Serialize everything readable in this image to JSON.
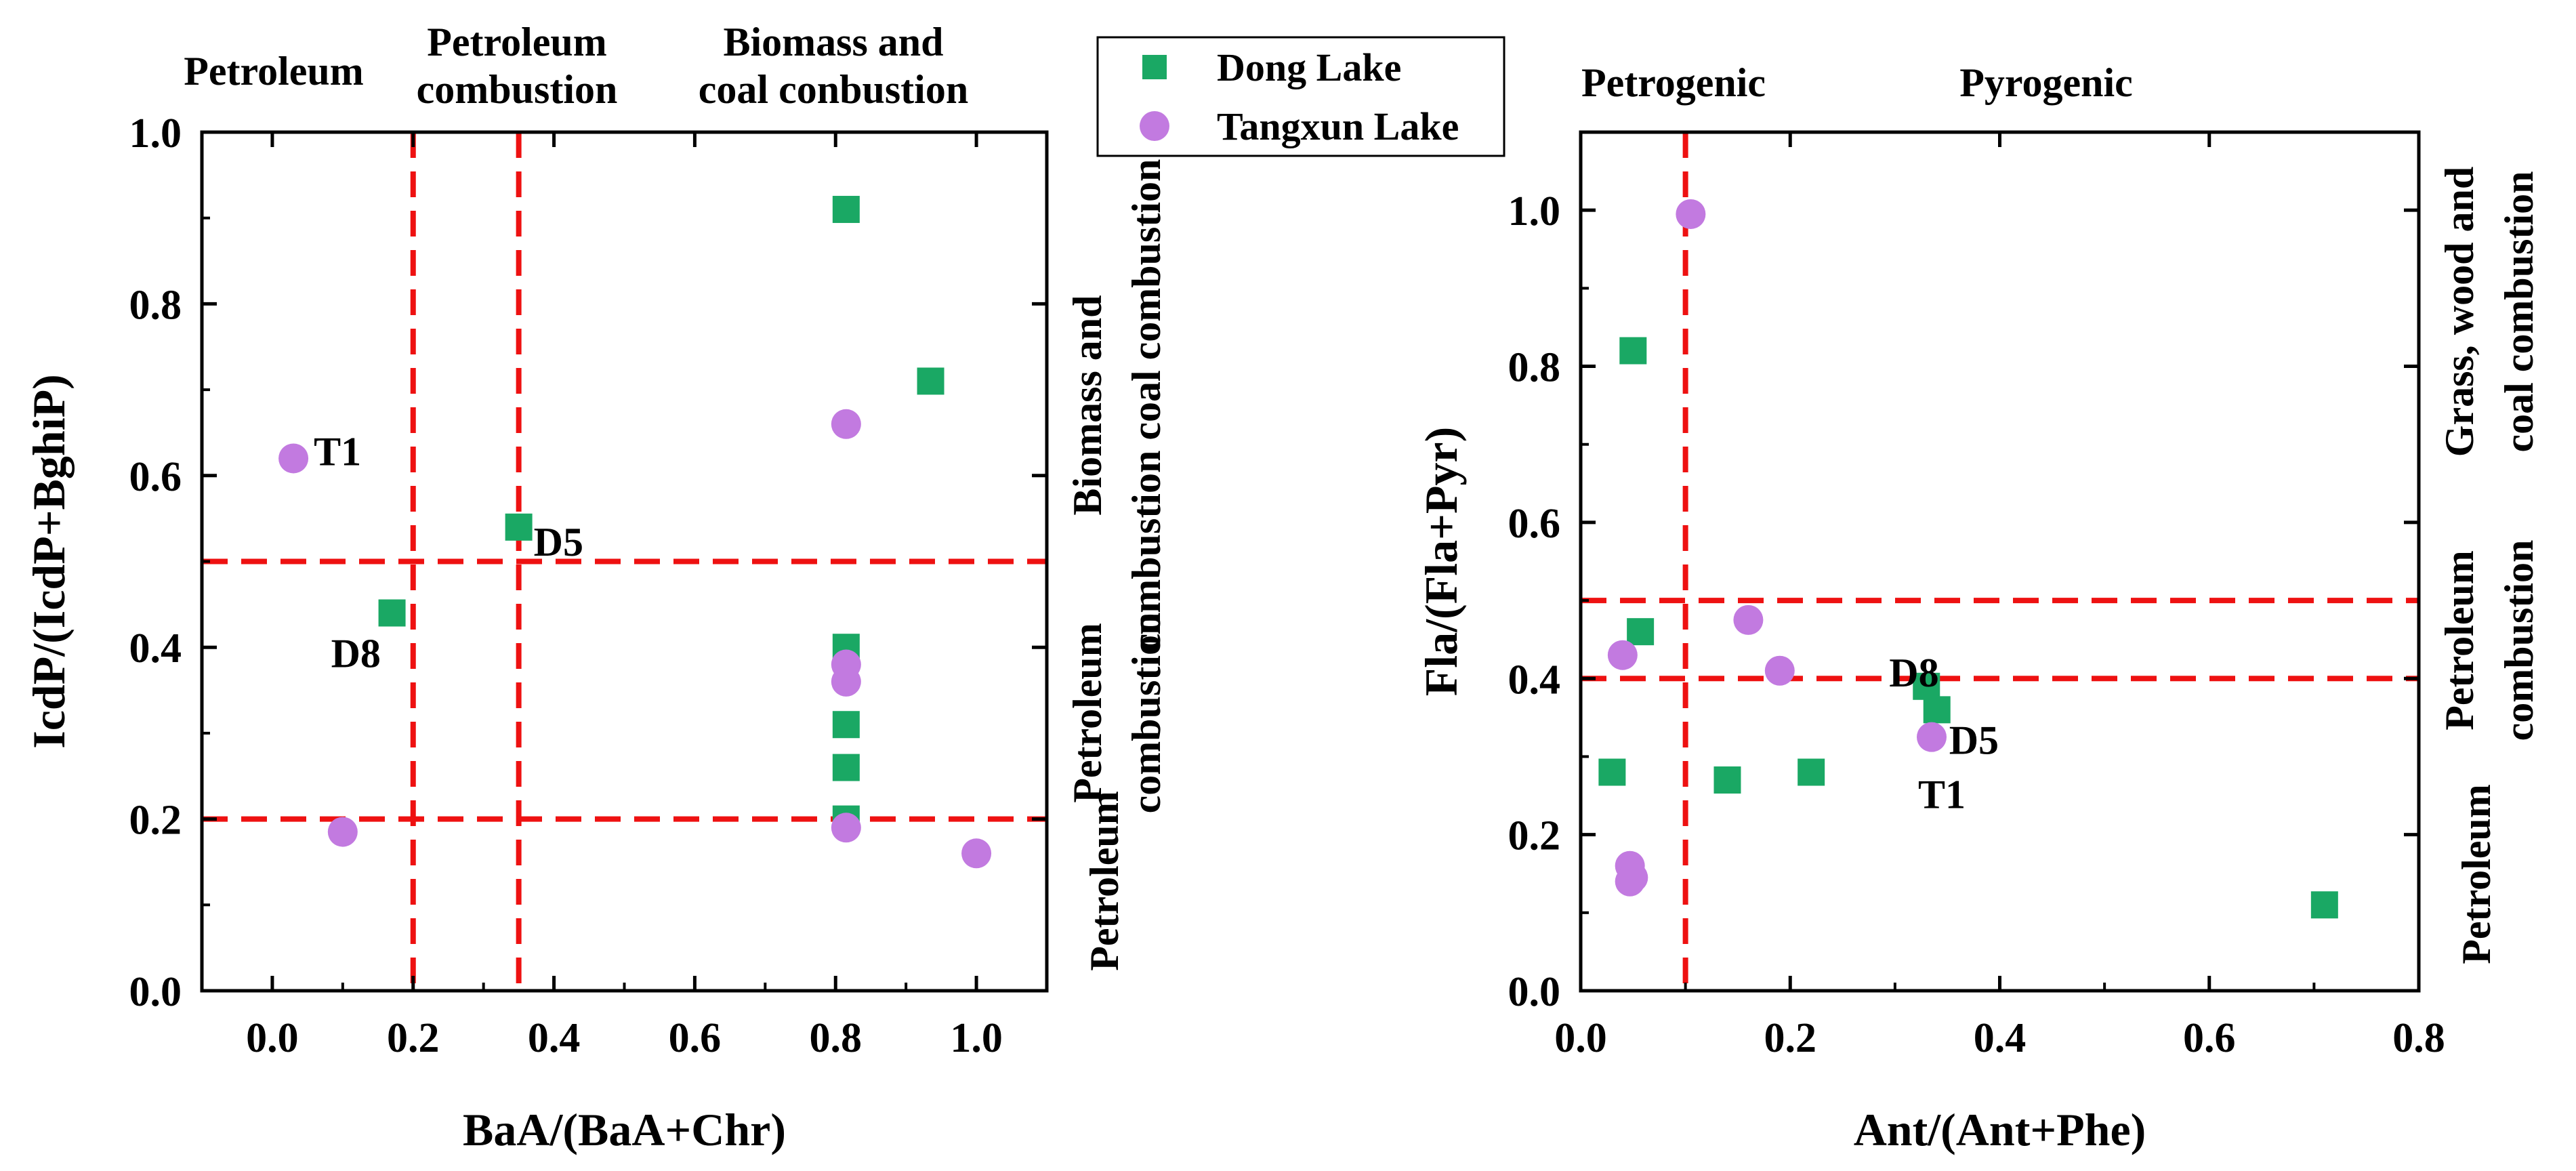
{
  "colors": {
    "dong_lake": "#1aa864",
    "tangxun_lake": "#c27ae0",
    "threshold_line": "#ee1111",
    "axis": "#000000"
  },
  "legend": {
    "items": [
      {
        "label": "Dong Lake",
        "marker": "square",
        "color": "#1aa864"
      },
      {
        "label": "Tangxun Lake",
        "marker": "circle",
        "color": "#c27ae0"
      }
    ]
  },
  "chart_data": [
    {
      "type": "scatter",
      "xlabel": "BaA/(BaA+Chr)",
      "ylabel": "IcdP/(IcdP+BghiP)",
      "xlim": [
        -0.1,
        1.1
      ],
      "ylim": [
        0,
        1.0
      ],
      "xticks": [
        "0.0",
        "0.2",
        "0.4",
        "0.6",
        "0.8",
        "1.0"
      ],
      "yticks": [
        "0.0",
        "0.2",
        "0.4",
        "0.6",
        "0.8",
        "1.0"
      ],
      "xtick_values": [
        0,
        0.2,
        0.4,
        0.6,
        0.8,
        1.0
      ],
      "ytick_values": [
        0,
        0.2,
        0.4,
        0.6,
        0.8,
        1.0
      ],
      "vlines": [
        0.2,
        0.35
      ],
      "hlines": [
        0.5,
        0.2
      ],
      "top_regions": [
        "Petroleum",
        "Petroleum\ncombustion",
        "Biomass and\ncoal conbustion"
      ],
      "right_regions": [
        "Biomass and\ncombustion coal combustion",
        "Petroleum\ncombustion",
        "Petroleum"
      ],
      "series": [
        {
          "name": "Dong Lake",
          "marker": "square",
          "x": [
            0.815,
            0.935,
            0.35,
            0.17,
            0.815,
            0.815,
            0.815,
            0.815
          ],
          "y": [
            0.91,
            0.71,
            0.54,
            0.44,
            0.4,
            0.31,
            0.26,
            0.2
          ]
        },
        {
          "name": "Tangxun Lake",
          "marker": "circle",
          "x": [
            0.03,
            0.815,
            0.815,
            0.815,
            0.1,
            0.815,
            1.0
          ],
          "y": [
            0.62,
            0.66,
            0.38,
            0.36,
            0.185,
            0.19,
            0.16
          ]
        }
      ],
      "annotations": [
        {
          "text": "T1",
          "x": 0.03,
          "y": 0.62
        },
        {
          "text": "D5",
          "x": 0.35,
          "y": 0.54
        },
        {
          "text": "D8",
          "x": 0.17,
          "y": 0.44
        }
      ]
    },
    {
      "type": "scatter",
      "xlabel": "Ant/(Ant+Phe)",
      "ylabel": "Fla/(Fla+Pyr)",
      "xlim": [
        0,
        0.8
      ],
      "ylim": [
        0,
        1.1
      ],
      "xticks": [
        "0.0",
        "0.2",
        "0.4",
        "0.6",
        "0.8"
      ],
      "yticks": [
        "0.0",
        "0.2",
        "0.4",
        "0.6",
        "0.8",
        "1.0"
      ],
      "xtick_values": [
        0,
        0.2,
        0.4,
        0.6,
        0.8
      ],
      "ytick_values": [
        0,
        0.2,
        0.4,
        0.6,
        0.8,
        1.0
      ],
      "vlines": [
        0.1
      ],
      "hlines": [
        0.5,
        0.4
      ],
      "top_regions": [
        "Petrogenic",
        "Pyrogenic"
      ],
      "right_regions": [
        "Grass, wood and\ncoal combustion",
        "Petroleum\ncombustion",
        "Petroleum"
      ],
      "series": [
        {
          "name": "Dong Lake",
          "marker": "square",
          "x": [
            0.05,
            0.057,
            0.33,
            0.34,
            0.03,
            0.14,
            0.22,
            0.71
          ],
          "y": [
            0.82,
            0.46,
            0.39,
            0.36,
            0.28,
            0.27,
            0.28,
            0.11
          ]
        },
        {
          "name": "Tangxun Lake",
          "marker": "circle",
          "x": [
            0.105,
            0.16,
            0.04,
            0.19,
            0.335,
            0.047,
            0.05,
            0.047
          ],
          "y": [
            0.995,
            0.475,
            0.43,
            0.41,
            0.325,
            0.16,
            0.145,
            0.14
          ]
        }
      ],
      "annotations": [
        {
          "text": "D8",
          "x": 0.33,
          "y": 0.39
        },
        {
          "text": "D5",
          "x": 0.34,
          "y": 0.36
        },
        {
          "text": "T1",
          "x": 0.335,
          "y": 0.325
        }
      ]
    }
  ]
}
